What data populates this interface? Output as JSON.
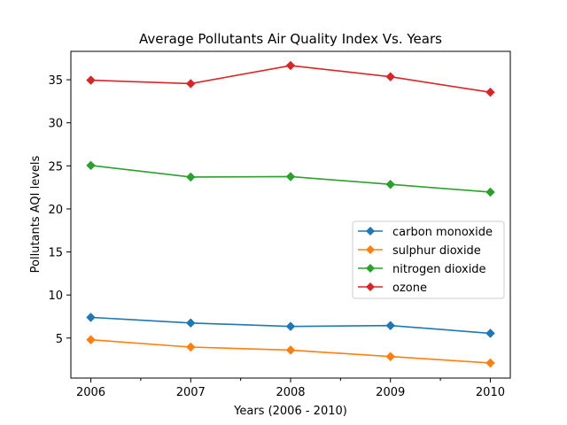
{
  "chart_data": {
    "type": "line",
    "title": "Average Pollutants Air Quality Index Vs. Years",
    "xlabel": "Years (2006 - 2010)",
    "ylabel": "Pollutants AQI levels",
    "x": [
      2006,
      2007,
      2008,
      2009,
      2010
    ],
    "x_tick_labels": [
      "2006",
      "2007",
      "2008",
      "2009",
      "2010"
    ],
    "xlim": [
      2005.8,
      2010.2
    ],
    "ylim": [
      0.35,
      38.3
    ],
    "y_ticks": [
      5,
      10,
      15,
      20,
      25,
      30,
      35
    ],
    "y_tick_labels": [
      "5",
      "10",
      "15",
      "20",
      "25",
      "30",
      "35"
    ],
    "grid": false,
    "legend_position": "center-right",
    "marker": "diamond",
    "series": [
      {
        "name": "carbon monoxide",
        "color": "#1f77b4",
        "values": [
          7.4,
          6.75,
          6.35,
          6.45,
          5.55
        ]
      },
      {
        "name": "sulphur dioxide",
        "color": "#ff7f0e",
        "values": [
          4.8,
          3.95,
          3.6,
          2.85,
          2.1
        ]
      },
      {
        "name": "nitrogen dioxide",
        "color": "#2ca02c",
        "values": [
          25.05,
          23.7,
          23.75,
          22.85,
          21.95
        ]
      },
      {
        "name": "ozone",
        "color": "#d62728",
        "values": [
          34.95,
          34.55,
          36.65,
          35.35,
          33.55
        ]
      }
    ]
  }
}
